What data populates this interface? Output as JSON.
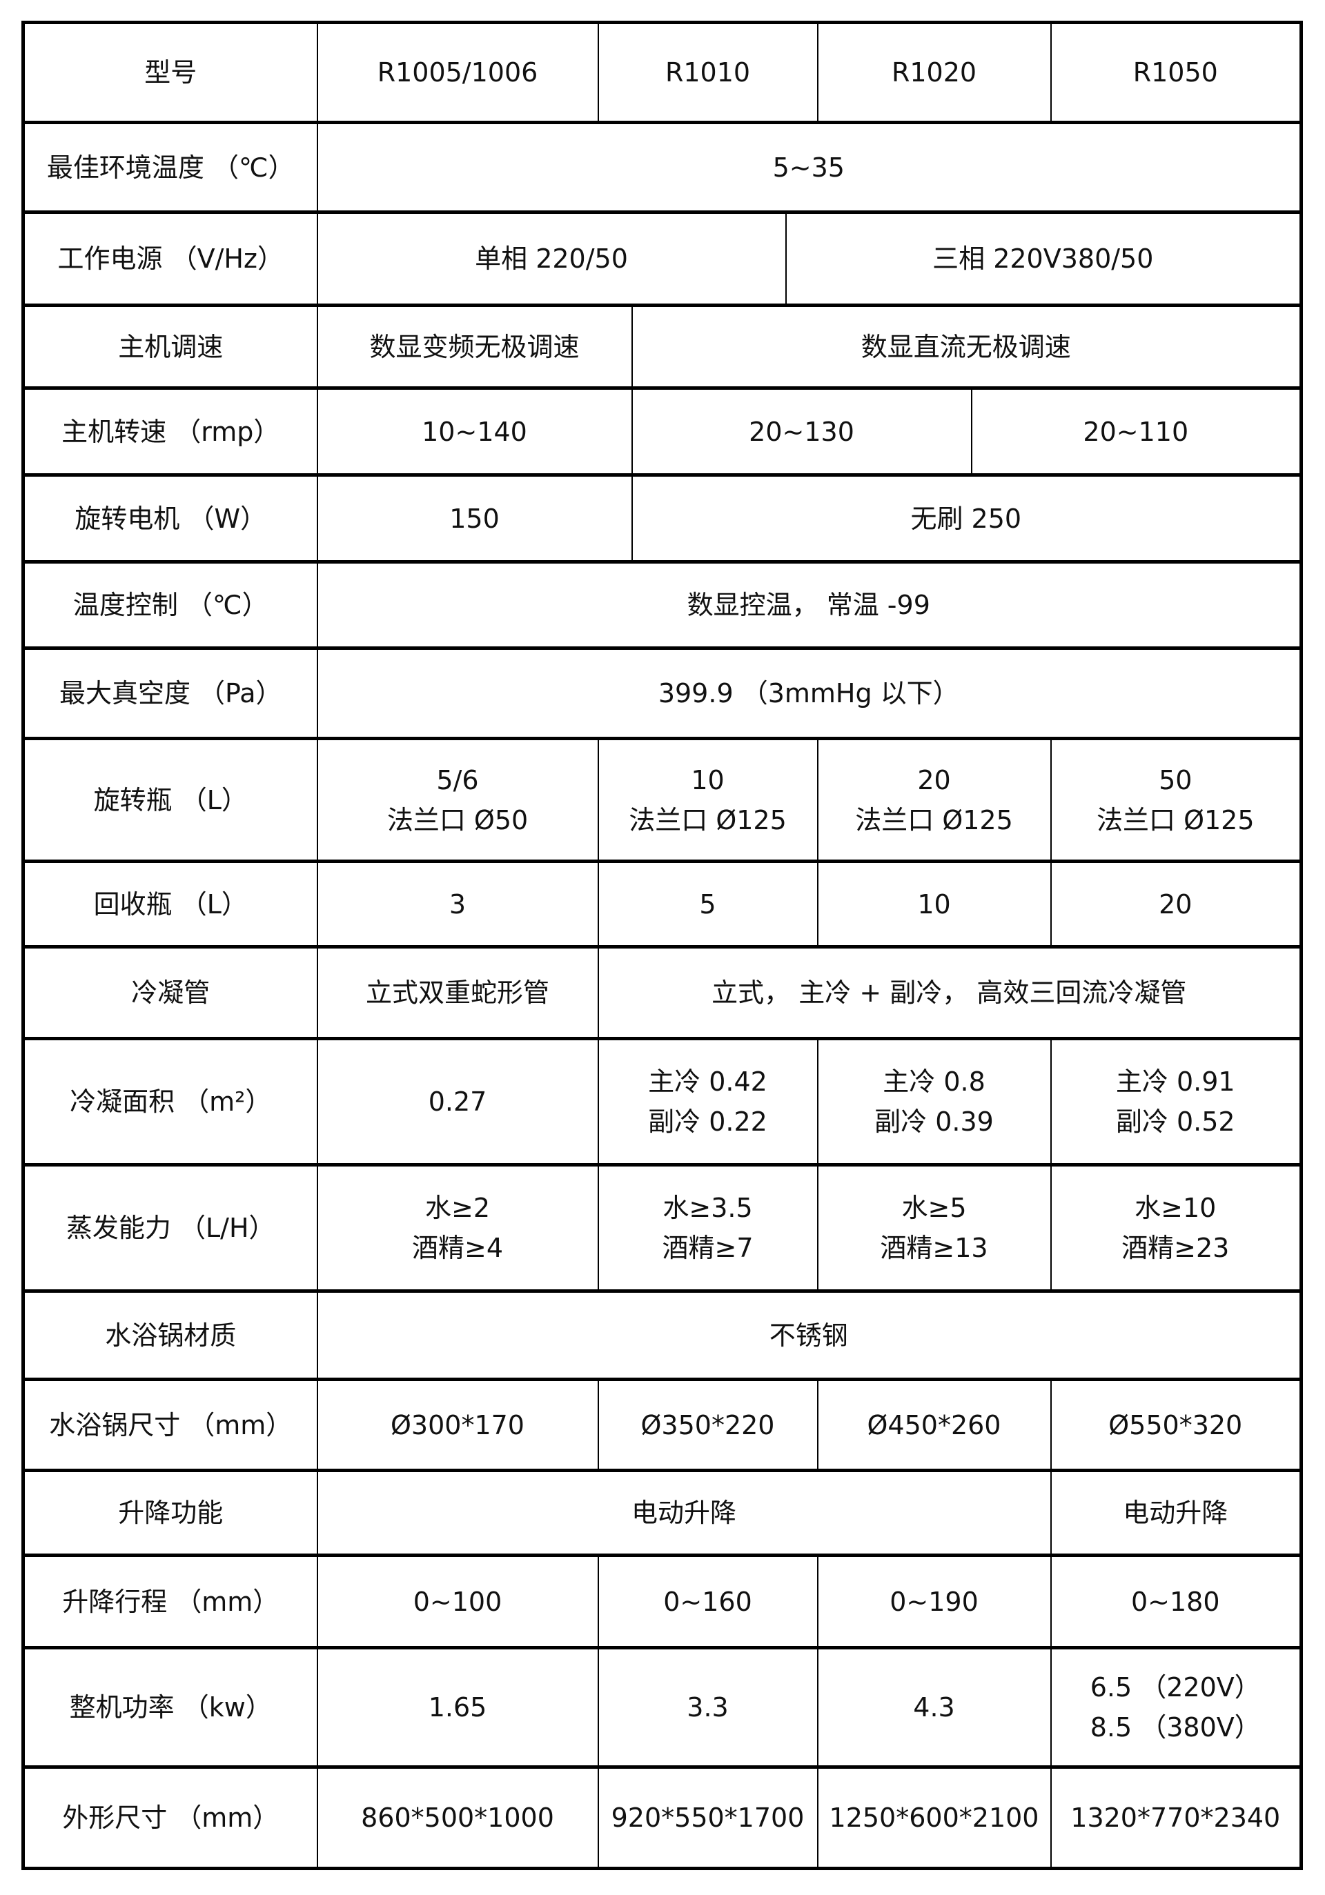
{
  "table": {
    "rows": [
      {
        "label": "型号",
        "cells": [
          "R1005/1006",
          "R1010",
          "R1020",
          "R1050"
        ]
      },
      {
        "label": "最佳环境温度 （℃）",
        "cells": [
          "5~35"
        ]
      },
      {
        "label": "工作电源 （V/Hz）",
        "cells": [
          "单相 220/50",
          "三相 220V380/50"
        ]
      },
      {
        "label": "主机调速",
        "cells": [
          "数显变频无极调速",
          "数显直流无极调速"
        ]
      },
      {
        "label": "主机转速 （rmp）",
        "cells": [
          "10~140",
          "20~130",
          "20~110"
        ]
      },
      {
        "label": "旋转电机 （W）",
        "cells": [
          "150",
          "无刷 250"
        ]
      },
      {
        "label": "温度控制 （℃）",
        "cells": [
          "数显控温， 常温 -99"
        ]
      },
      {
        "label": "最大真空度 （Pa）",
        "cells": [
          "399.9 （3mmHg 以下）"
        ]
      },
      {
        "label": "旋转瓶 （L）",
        "cells": [
          "5/6\n法兰口 Ø50",
          "10\n法兰口 Ø125",
          "20\n法兰口 Ø125",
          "50\n法兰口 Ø125"
        ]
      },
      {
        "label": "回收瓶 （L）",
        "cells": [
          "3",
          "5",
          "10",
          "20"
        ]
      },
      {
        "label": "冷凝管",
        "cells": [
          "立式双重蛇形管",
          "立式， 主冷 + 副冷， 高效三回流冷凝管"
        ]
      },
      {
        "label": "冷凝面积 （m²）",
        "cells": [
          "0.27",
          "主冷 0.42\n副冷 0.22",
          "主冷 0.8\n副冷 0.39",
          "主冷 0.91\n副冷 0.52"
        ]
      },
      {
        "label": "蒸发能力 （L/H）",
        "cells": [
          "水≥2\n酒精≥4",
          "水≥3.5\n酒精≥7",
          "水≥5\n酒精≥13",
          "水≥10\n酒精≥23"
        ]
      },
      {
        "label": "水浴锅材质",
        "cells": [
          "不锈钢"
        ]
      },
      {
        "label": "水浴锅尺寸 （mm）",
        "cells": [
          "Ø300*170",
          "Ø350*220",
          "Ø450*260",
          "Ø550*320"
        ]
      },
      {
        "label": "升降功能",
        "cells": [
          "电动升降",
          "电动升降"
        ]
      },
      {
        "label": "升降行程 （mm）",
        "cells": [
          "0~100",
          "0~160",
          "0~190",
          "0~180"
        ]
      },
      {
        "label": "整机功率 （kw）",
        "cells": [
          "1.65",
          "3.3",
          "4.3",
          "6.5 （220V）\n8.5 （380V）"
        ]
      },
      {
        "label": "外形尺寸 （mm）",
        "cells": [
          "860*500*1000",
          "920*550*1700",
          "1250*600*2100",
          "1320*770*2340"
        ]
      }
    ]
  }
}
